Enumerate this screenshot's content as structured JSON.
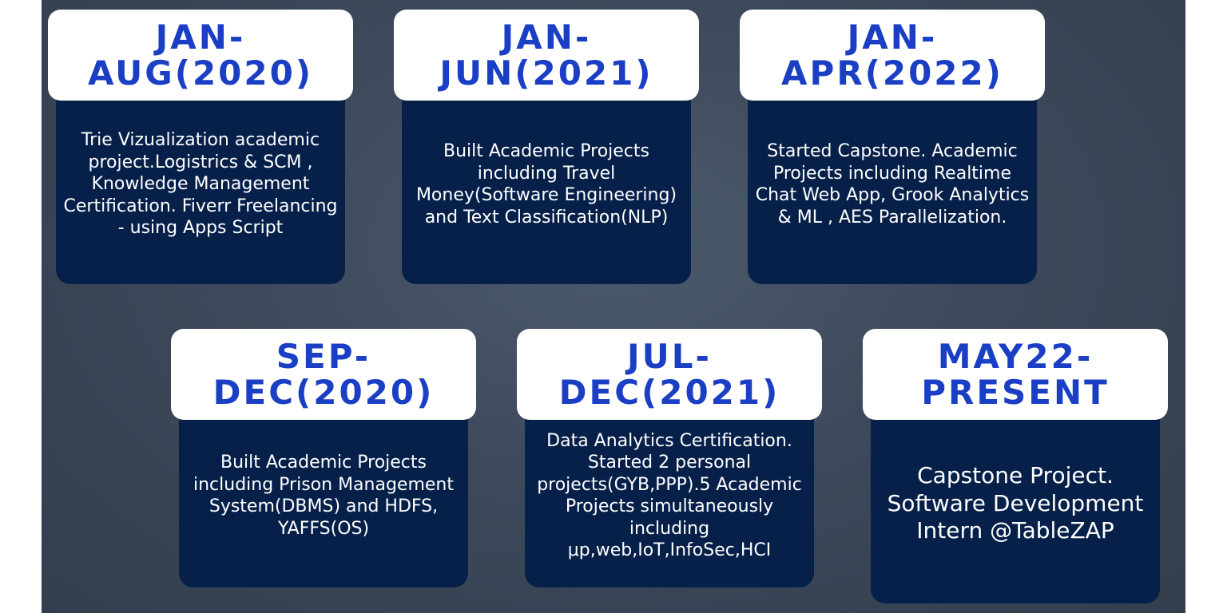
{
  "milestones": [
    {
      "period": "JAN-\nAUG(2020)",
      "description": "Trie Vizualization academic project.Logistrics & SCM , Knowledge Management Certification. Fiverr Freelancing - using Apps Script"
    },
    {
      "period": "JAN-\nJUN(2021)",
      "description": "Built Academic Projects including Travel Money(Software Engineering) and Text Classification(NLP)"
    },
    {
      "period": "JAN-\nAPR(2022)",
      "description": "Started Capstone. Academic Projects including Realtime Chat Web App, Grook Analytics & ML , AES Parallelization."
    },
    {
      "period": "SEP-\nDEC(2020)",
      "description": "Built Academic Projects including Prison Management System(DBMS) and HDFS, YAFFS(OS)"
    },
    {
      "period": "JUL-\nDEC(2021)",
      "description": "Data Analytics Certification. Started 2 personal projects(GYB,PPP).5 Academic Projects simultaneously including μp,web,IoT,InfoSec,HCI"
    },
    {
      "period": "MAY22-\nPRESENT",
      "description": "Capstone Project. Software Development Intern @TableZAP"
    }
  ],
  "colors": {
    "background": "#3d4a5b",
    "header_bg": "#ffffff",
    "header_text": "#1a3fc4",
    "body_bg": "#06204a",
    "body_text": "#ffffff"
  }
}
